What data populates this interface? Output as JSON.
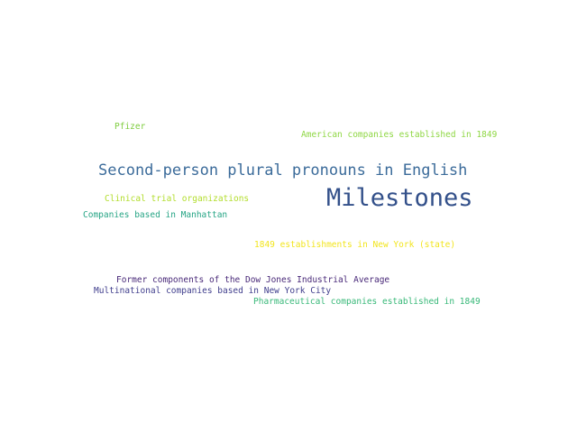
{
  "words": [
    {
      "text": "Pfizer",
      "color": "#7fcd3f"
    },
    {
      "text": "American companies established in 1849",
      "color": "#8fd744"
    },
    {
      "text": "Second-person plural pronouns in English",
      "color": "#3b6b9a"
    },
    {
      "text": "Milestones",
      "color": "#33508a"
    },
    {
      "text": "Clinical trial organizations",
      "color": "#b2dd2c"
    },
    {
      "text": "Companies based in Manhattan",
      "color": "#25a484"
    },
    {
      "text": "1849 establishments in New York (state)",
      "color": "#f2e51d"
    },
    {
      "text": "Former components of the Dow Jones Industrial Average",
      "color": "#482878"
    },
    {
      "text": "Multinational companies based in New York City",
      "color": "#3f3d8c"
    },
    {
      "text": "Pharmaceutical companies established in 1849",
      "color": "#37b878"
    }
  ]
}
